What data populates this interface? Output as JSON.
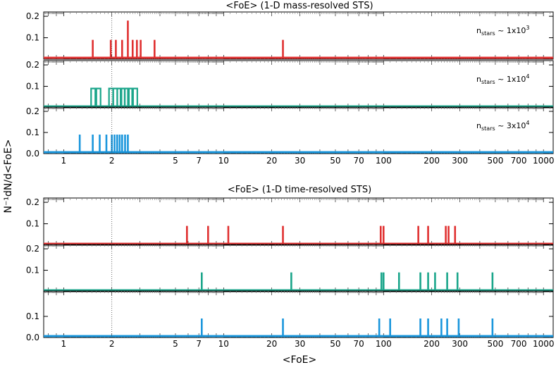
{
  "colors": {
    "red": "#e03030",
    "green": "#1aa58a",
    "blue": "#1a96dc"
  },
  "chart_data": [
    {
      "type": "bar",
      "title": "<FoE> (1-D mass-resolved STS)",
      "xlabel": "",
      "xscale": "log",
      "xlim": [
        0.75,
        1150
      ],
      "xticks": [
        "1",
        "2",
        "5",
        "7",
        "10",
        "20",
        "30",
        "50",
        "70",
        "100",
        "200",
        "300",
        "500",
        "700",
        "1000"
      ],
      "panels": [
        {
          "name": "red",
          "ylim": [
            0,
            0.22
          ],
          "yticks": [
            "0.1",
            "0.2"
          ],
          "annotation": {
            "prefix": "n",
            "sub": "stars",
            "mid": " ~ 1x10",
            "sup": "3"
          },
          "outline": false,
          "x": [
            1.52,
            1.97,
            2.12,
            2.32,
            2.52,
            2.7,
            2.87,
            3.03,
            3.7,
            23.5
          ],
          "values": [
            0.09,
            0.09,
            0.09,
            0.09,
            0.18,
            0.09,
            0.09,
            0.09,
            0.09,
            0.09
          ]
        },
        {
          "name": "green",
          "ylim": [
            0,
            0.22
          ],
          "yticks": [
            "0.1",
            "0.2"
          ],
          "annotation": {
            "prefix": "n",
            "sub": "stars",
            "mid": " ~ 1x10",
            "sup": "4"
          },
          "outline": true,
          "x": [
            1.53,
            1.65,
            1.98,
            2.1,
            2.23,
            2.34,
            2.48,
            2.6,
            2.8
          ],
          "values": [
            0.09,
            0.09,
            0.09,
            0.09,
            0.09,
            0.09,
            0.09,
            0.09,
            0.09
          ]
        },
        {
          "name": "blue",
          "ylim": [
            0,
            0.22
          ],
          "yticks": [
            "0.0",
            "0.1",
            "0.2"
          ],
          "annotation": {
            "prefix": "n",
            "sub": "stars",
            "mid": " ~ 3x10",
            "sup": "4"
          },
          "outline": false,
          "x": [
            1.26,
            1.52,
            1.68,
            1.85,
            2.0,
            2.08,
            2.16,
            2.24,
            2.32,
            2.42,
            2.52
          ],
          "values": [
            0.09,
            0.09,
            0.09,
            0.09,
            0.09,
            0.09,
            0.09,
            0.09,
            0.09,
            0.09,
            0.09
          ]
        }
      ]
    },
    {
      "type": "bar",
      "title": "<FoE> (1-D time-resolved STS)",
      "xlabel": "<FoE>",
      "xscale": "log",
      "xlim": [
        0.75,
        1150
      ],
      "xticks": [
        "1",
        "2",
        "5",
        "7",
        "10",
        "20",
        "30",
        "50",
        "70",
        "100",
        "200",
        "300",
        "500",
        "700",
        "1000"
      ],
      "panels": [
        {
          "name": "red",
          "ylim": [
            0,
            0.22
          ],
          "yticks": [
            "0.1",
            "0.2"
          ],
          "outline": false,
          "x": [
            5.9,
            8.0,
            10.7,
            23.5,
            96,
            100,
            165,
            190,
            245,
            255,
            280
          ],
          "values": [
            0.09,
            0.09,
            0.09,
            0.09,
            0.09,
            0.09,
            0.09,
            0.09,
            0.09,
            0.09,
            0.09
          ]
        },
        {
          "name": "green",
          "ylim": [
            0,
            0.22
          ],
          "yticks": [
            "0.1",
            "0.2"
          ],
          "outline": false,
          "x": [
            7.3,
            26.5,
            97,
            100,
            125,
            170,
            190,
            210,
            250,
            290,
            480
          ],
          "values": [
            0.09,
            0.09,
            0.09,
            0.09,
            0.09,
            0.09,
            0.09,
            0.09,
            0.09,
            0.09,
            0.09
          ]
        },
        {
          "name": "blue",
          "ylim": [
            0,
            0.22
          ],
          "yticks": [
            "0.0",
            "0.1"
          ],
          "outline": false,
          "x": [
            7.3,
            23.5,
            94,
            110,
            170,
            190,
            230,
            250,
            295,
            480
          ],
          "values": [
            0.09,
            0.09,
            0.09,
            0.09,
            0.09,
            0.09,
            0.09,
            0.09,
            0.09,
            0.09
          ]
        }
      ]
    }
  ],
  "ylabel": "N⁻¹dN/d<FoE>",
  "reference_line_x": 2
}
